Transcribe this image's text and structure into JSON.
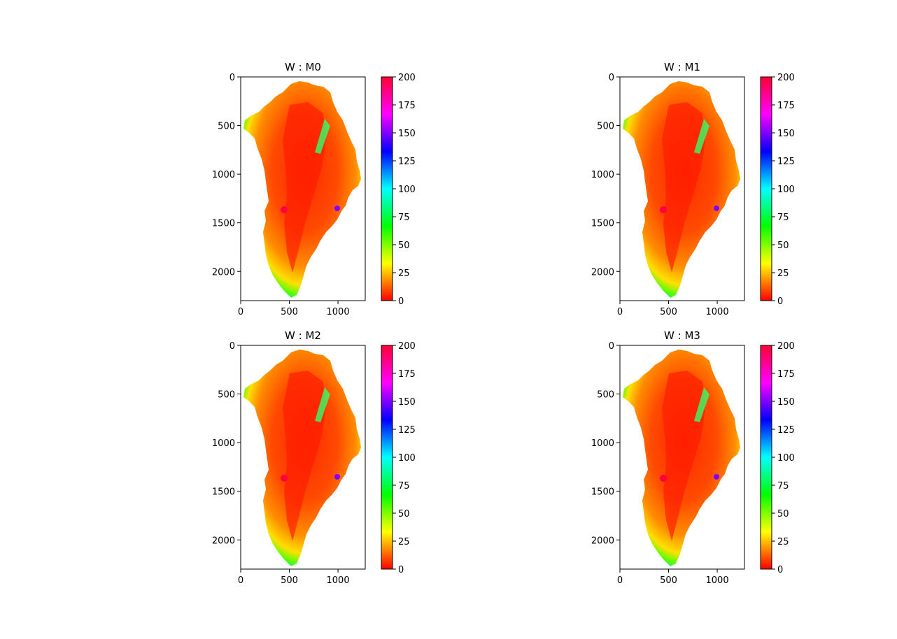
{
  "chart_data": [
    {
      "type": "heatmap",
      "title": "W : M0",
      "x_ticks": [
        "0",
        "500",
        "1000"
      ],
      "y_ticks": [
        "0",
        "500",
        "1000",
        "1500",
        "2000"
      ],
      "xlim": [
        0,
        1280
      ],
      "ylim": [
        2300,
        0
      ],
      "colorbar": {
        "colormap": "hsv",
        "range": [
          0,
          200
        ],
        "ticks": [
          "0",
          "25",
          "50",
          "75",
          "100",
          "125",
          "150",
          "175",
          "200"
        ]
      },
      "grid": false
    },
    {
      "type": "heatmap",
      "title": "W : M1",
      "x_ticks": [
        "0",
        "500",
        "1000"
      ],
      "y_ticks": [
        "0",
        "500",
        "1000",
        "1500",
        "2000"
      ],
      "xlim": [
        0,
        1280
      ],
      "ylim": [
        2300,
        0
      ],
      "colorbar": {
        "colormap": "hsv",
        "range": [
          0,
          200
        ],
        "ticks": [
          "0",
          "25",
          "50",
          "75",
          "100",
          "125",
          "150",
          "175",
          "200"
        ]
      },
      "grid": false
    },
    {
      "type": "heatmap",
      "title": "W : M2",
      "x_ticks": [
        "0",
        "500",
        "1000"
      ],
      "y_ticks": [
        "0",
        "500",
        "1000",
        "1500",
        "2000"
      ],
      "xlim": [
        0,
        1280
      ],
      "ylim": [
        2300,
        0
      ],
      "colorbar": {
        "colormap": "hsv",
        "range": [
          0,
          200
        ],
        "ticks": [
          "0",
          "25",
          "50",
          "75",
          "100",
          "125",
          "150",
          "175",
          "200"
        ]
      },
      "grid": false
    },
    {
      "type": "heatmap",
      "title": "W : M3",
      "x_ticks": [
        "0",
        "500",
        "1000"
      ],
      "y_ticks": [
        "0",
        "500",
        "1000",
        "1500",
        "2000"
      ],
      "xlim": [
        0,
        1280
      ],
      "ylim": [
        2300,
        0
      ],
      "colorbar": {
        "colormap": "hsv",
        "range": [
          0,
          200
        ],
        "ticks": [
          "0",
          "25",
          "50",
          "75",
          "100",
          "125",
          "150",
          "175",
          "200"
        ]
      },
      "grid": false
    }
  ]
}
